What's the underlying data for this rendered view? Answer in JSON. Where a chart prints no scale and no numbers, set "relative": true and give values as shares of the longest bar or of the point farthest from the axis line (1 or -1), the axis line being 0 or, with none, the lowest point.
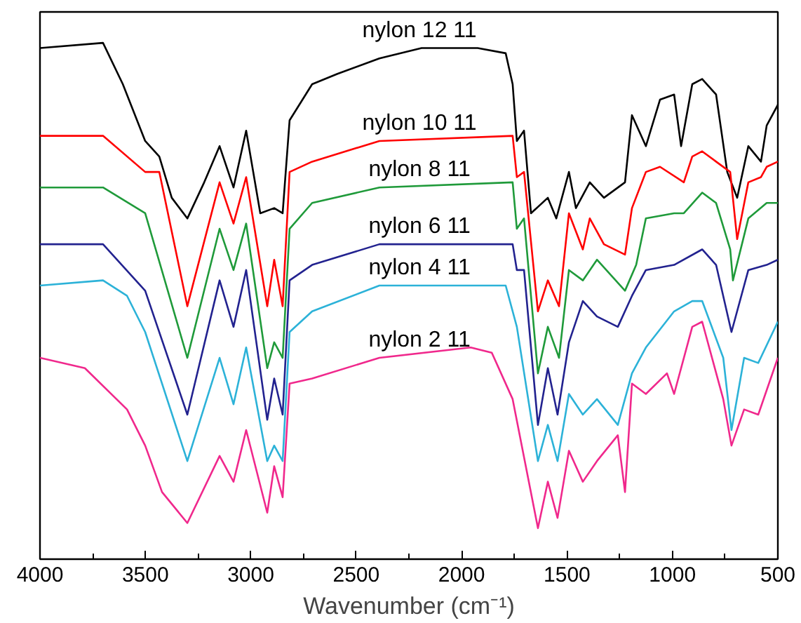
{
  "chart_data": {
    "type": "line",
    "relative": true,
    "xlabel": "Wavenumber (cm⁻¹)",
    "xlim": [
      4000,
      500
    ],
    "xticks": [
      4000,
      3500,
      3000,
      2500,
      2000,
      1500,
      1000,
      500
    ],
    "grid": false,
    "marker": "none",
    "line_style": "solid",
    "series": [
      {
        "name": "nylon 12 11",
        "color": "#000000",
        "x": [
          4000,
          3701,
          3607,
          3501,
          3434,
          3375,
          3301,
          3221,
          3148,
          3082,
          3022,
          2955,
          2889,
          2849,
          2816,
          2709,
          2589,
          2390,
          2190,
          1924,
          1791,
          1758,
          1738,
          1704,
          1671,
          1591,
          1551,
          1491,
          1458,
          1392,
          1325,
          1225,
          1192,
          1126,
          1059,
          992,
          959,
          906,
          859,
          793,
          740,
          693,
          640,
          580,
          553,
          500
        ],
        "values": [
          0.99,
          1.0,
          0.92,
          0.81,
          0.78,
          0.7,
          0.66,
          0.73,
          0.8,
          0.72,
          0.83,
          0.67,
          0.68,
          0.67,
          0.85,
          0.92,
          0.94,
          0.97,
          0.99,
          0.99,
          0.98,
          0.92,
          0.81,
          0.83,
          0.67,
          0.7,
          0.66,
          0.75,
          0.68,
          0.73,
          0.7,
          0.73,
          0.86,
          0.8,
          0.89,
          0.9,
          0.8,
          0.92,
          0.93,
          0.9,
          0.75,
          0.7,
          0.8,
          0.77,
          0.84,
          0.88
        ]
      },
      {
        "name": "nylon 10 11",
        "color": "#ff0000",
        "x": [
          4000,
          3701,
          3501,
          3434,
          3301,
          3148,
          3082,
          3022,
          2922,
          2889,
          2849,
          2816,
          2709,
          2390,
          1758,
          1738,
          1704,
          1638,
          1591,
          1538,
          1491,
          1425,
          1392,
          1325,
          1225,
          1192,
          1126,
          1059,
          946,
          906,
          859,
          793,
          726,
          693,
          640,
          580,
          553,
          500
        ],
        "values": [
          0.82,
          0.82,
          0.75,
          0.75,
          0.49,
          0.73,
          0.65,
          0.74,
          0.49,
          0.58,
          0.49,
          0.75,
          0.77,
          0.81,
          0.82,
          0.74,
          0.75,
          0.48,
          0.54,
          0.49,
          0.67,
          0.6,
          0.66,
          0.61,
          0.59,
          0.68,
          0.75,
          0.76,
          0.73,
          0.78,
          0.79,
          0.77,
          0.75,
          0.62,
          0.73,
          0.74,
          0.76,
          0.77
        ]
      },
      {
        "name": "nylon 8 11",
        "color": "#1f9a3a",
        "x": [
          4000,
          3701,
          3501,
          3301,
          3148,
          3082,
          3022,
          2922,
          2889,
          2849,
          2816,
          2709,
          2390,
          1758,
          1738,
          1704,
          1638,
          1591,
          1538,
          1491,
          1425,
          1358,
          1225,
          1172,
          1126,
          992,
          946,
          859,
          793,
          726,
          713,
          640,
          553,
          500
        ],
        "values": [
          0.72,
          0.72,
          0.67,
          0.39,
          0.64,
          0.56,
          0.65,
          0.37,
          0.42,
          0.39,
          0.64,
          0.69,
          0.72,
          0.73,
          0.64,
          0.66,
          0.36,
          0.45,
          0.39,
          0.56,
          0.54,
          0.58,
          0.52,
          0.57,
          0.66,
          0.67,
          0.67,
          0.71,
          0.69,
          0.6,
          0.54,
          0.66,
          0.69,
          0.69
        ]
      },
      {
        "name": "nylon 6 11",
        "color": "#22228f",
        "x": [
          4000,
          3701,
          3501,
          3301,
          3148,
          3082,
          3022,
          2922,
          2889,
          2849,
          2816,
          2709,
          2390,
          1758,
          1738,
          1704,
          1638,
          1591,
          1545,
          1491,
          1425,
          1358,
          1259,
          1192,
          1126,
          992,
          859,
          793,
          720,
          640,
          553,
          500
        ],
        "values": [
          0.61,
          0.61,
          0.52,
          0.28,
          0.54,
          0.45,
          0.56,
          0.27,
          0.35,
          0.28,
          0.54,
          0.57,
          0.61,
          0.61,
          0.56,
          0.56,
          0.26,
          0.37,
          0.28,
          0.42,
          0.5,
          0.47,
          0.45,
          0.51,
          0.56,
          0.57,
          0.6,
          0.57,
          0.44,
          0.56,
          0.57,
          0.58
        ]
      },
      {
        "name": "nylon 4 11",
        "color": "#2cb2d8",
        "x": [
          4000,
          3701,
          3587,
          3501,
          3301,
          3148,
          3082,
          3022,
          2922,
          2889,
          2849,
          2816,
          2709,
          2390,
          1791,
          1738,
          1638,
          1591,
          1545,
          1491,
          1425,
          1358,
          1259,
          1192,
          1126,
          992,
          906,
          859,
          759,
          720,
          660,
          593,
          500
        ],
        "values": [
          0.53,
          0.54,
          0.51,
          0.44,
          0.19,
          0.39,
          0.3,
          0.41,
          0.19,
          0.22,
          0.19,
          0.44,
          0.48,
          0.53,
          0.53,
          0.45,
          0.19,
          0.26,
          0.19,
          0.32,
          0.28,
          0.31,
          0.26,
          0.36,
          0.41,
          0.48,
          0.5,
          0.5,
          0.39,
          0.25,
          0.39,
          0.38,
          0.46
        ]
      },
      {
        "name": "nylon 2 11",
        "color": "#f0288c",
        "x": [
          4000,
          3787,
          3587,
          3501,
          3421,
          3301,
          3148,
          3082,
          3022,
          2922,
          2889,
          2849,
          2816,
          2709,
          2390,
          1957,
          1857,
          1758,
          1638,
          1591,
          1545,
          1491,
          1425,
          1358,
          1259,
          1225,
          1192,
          1126,
          1026,
          992,
          906,
          859,
          759,
          720,
          660,
          593,
          500
        ],
        "values": [
          0.39,
          0.37,
          0.29,
          0.22,
          0.13,
          0.07,
          0.2,
          0.15,
          0.25,
          0.09,
          0.18,
          0.12,
          0.34,
          0.35,
          0.39,
          0.41,
          0.4,
          0.31,
          0.06,
          0.15,
          0.08,
          0.21,
          0.15,
          0.19,
          0.24,
          0.13,
          0.34,
          0.32,
          0.36,
          0.32,
          0.45,
          0.46,
          0.31,
          0.22,
          0.29,
          0.28,
          0.39
        ]
      }
    ]
  }
}
